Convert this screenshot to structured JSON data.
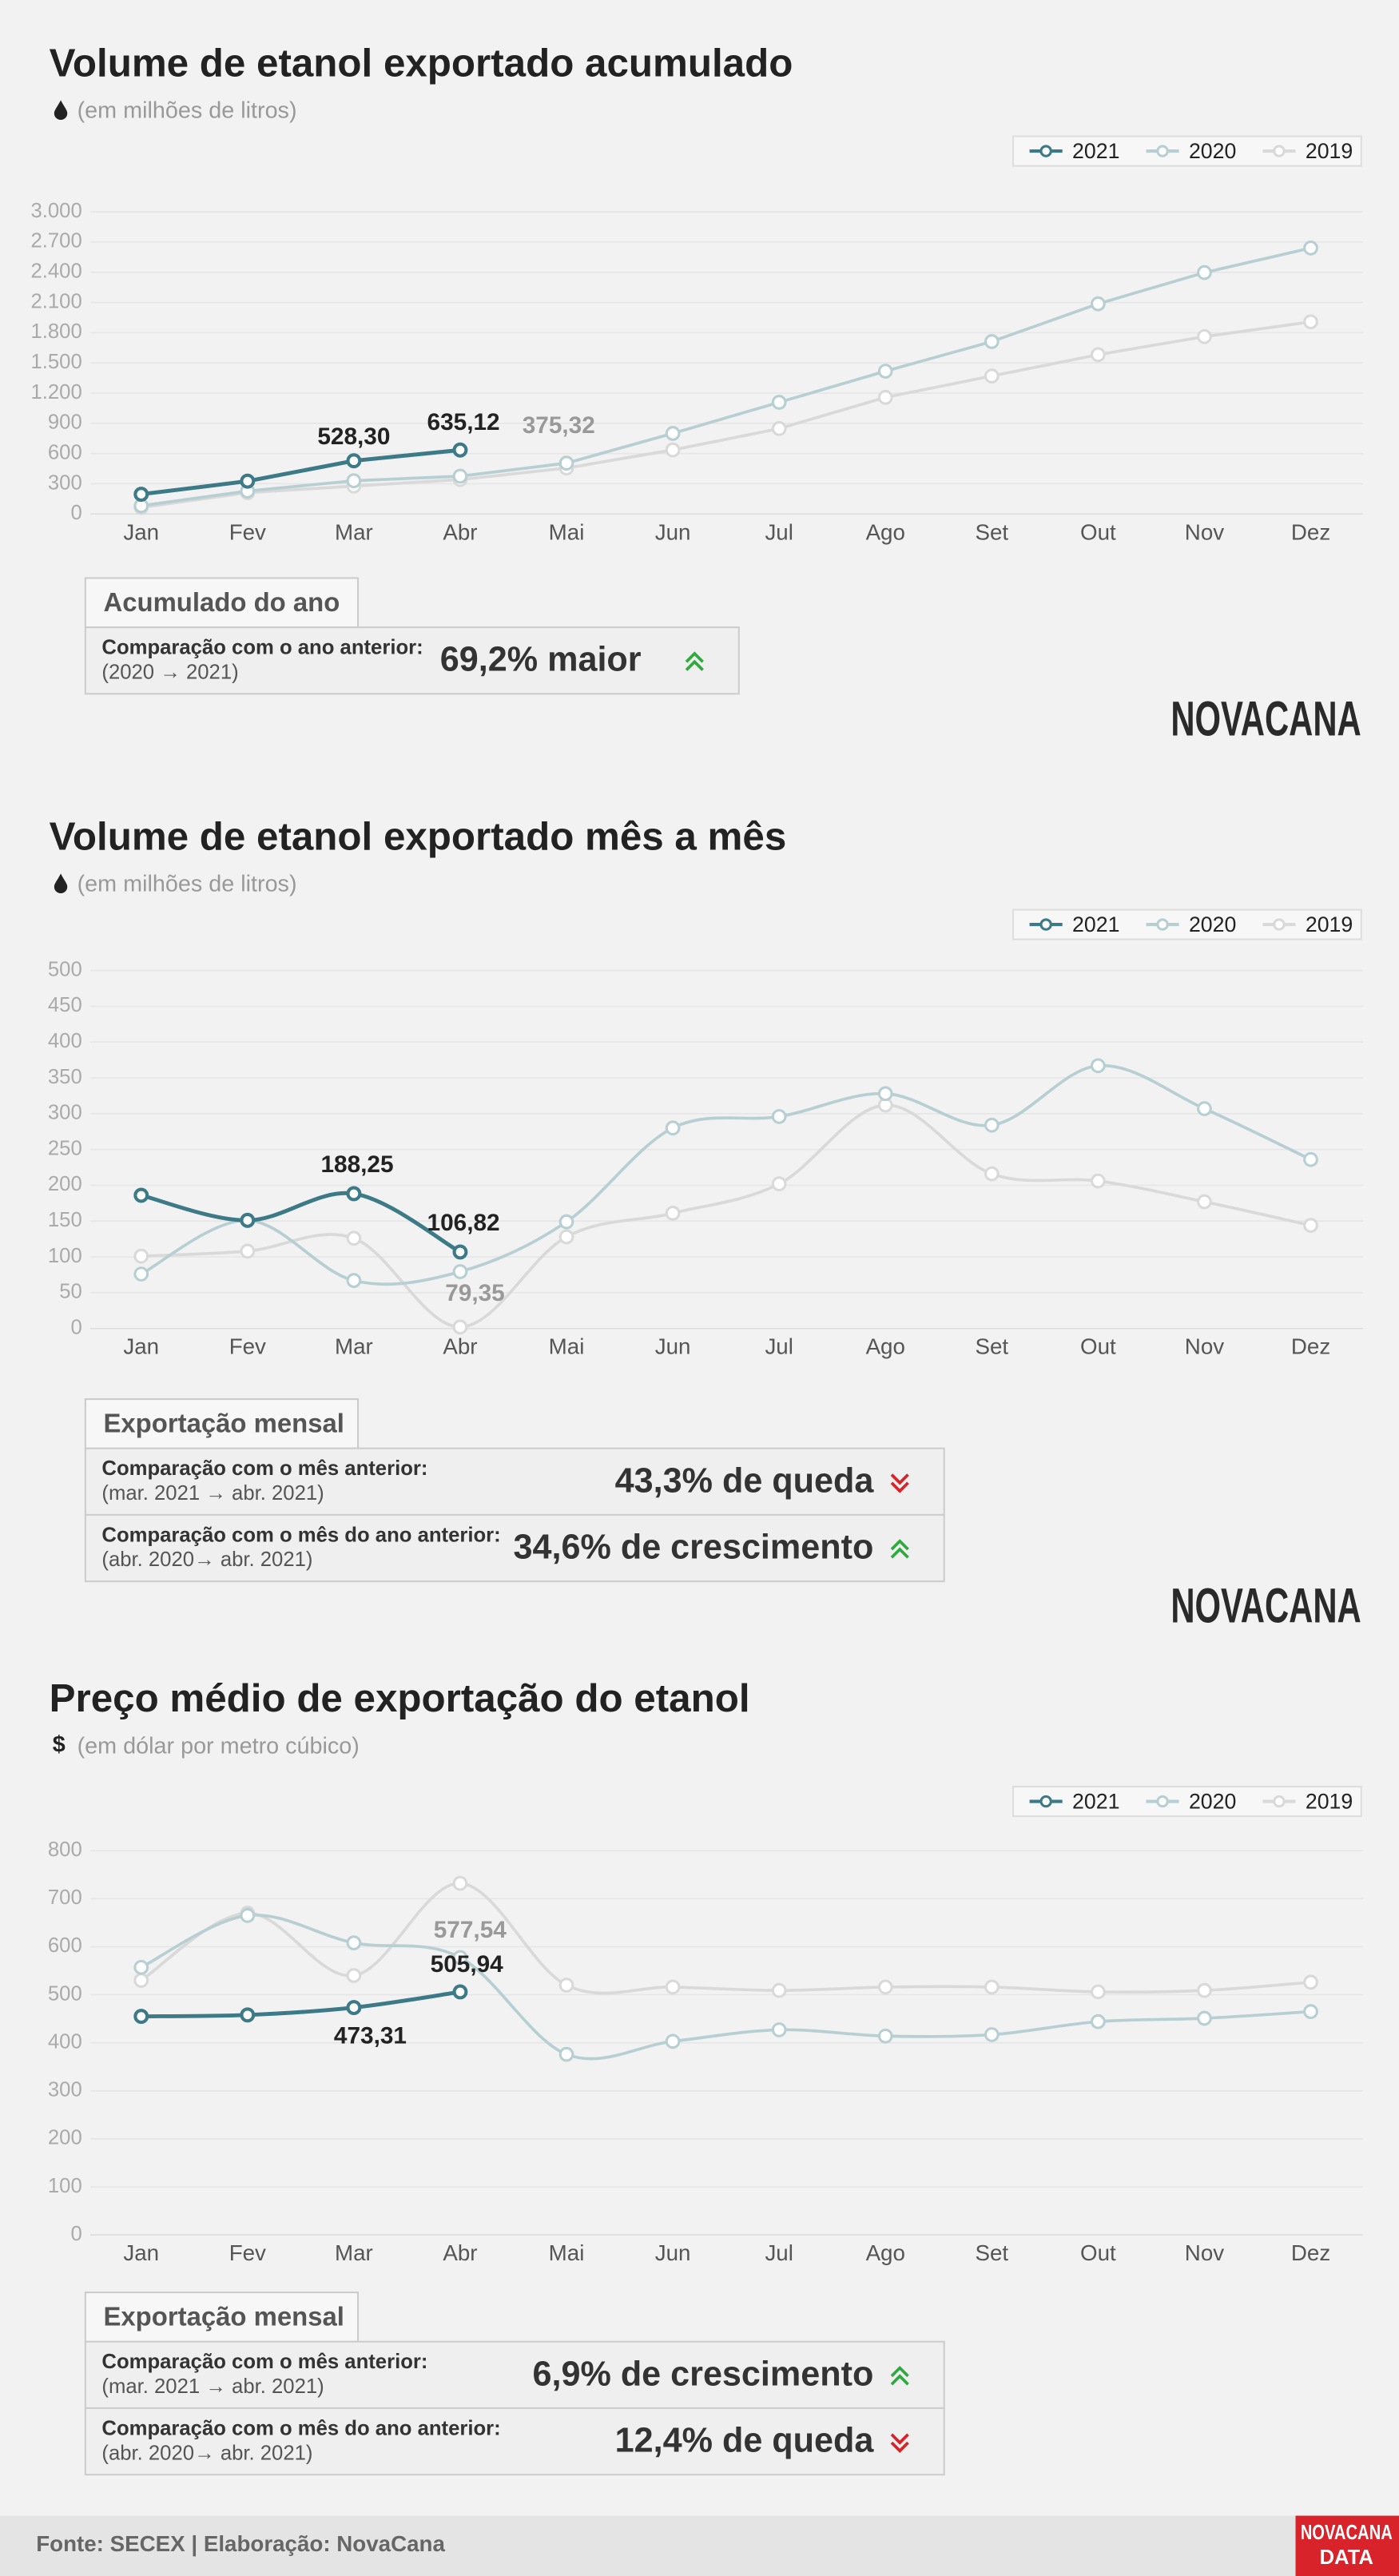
{
  "brand": "NOVACANA",
  "footer": {
    "source": "Fonte: SECEX | Elaboração: NovaCana",
    "logo_sub": "DATA"
  },
  "chart_data": [
    {
      "type": "line",
      "smooth": false,
      "grid": true,
      "title": "Volume de etanol exportado acumulado",
      "subtitle": "(em milhões de litros)",
      "categories": [
        "Jan",
        "Fev",
        "Mar",
        "Abr",
        "Mai",
        "Jun",
        "Jul",
        "Ago",
        "Set",
        "Out",
        "Nov",
        "Dez"
      ],
      "ylim": [
        0,
        3000
      ],
      "yticks": [
        0,
        300,
        600,
        900,
        {
          "value": 1200,
          "label": "1.200"
        },
        {
          "value": 1500,
          "label": "1.500"
        },
        {
          "value": 1800,
          "label": "1.800"
        },
        {
          "value": 2100,
          "label": "2.100"
        },
        {
          "value": 2400,
          "label": "2.400"
        },
        {
          "value": 2700,
          "label": "2.700"
        },
        {
          "value": 3000,
          "label": "3.000"
        }
      ],
      "series": [
        {
          "name": "2021",
          "color": "#3d7a87",
          "values": [
            196,
            326,
            528.3,
            635.12,
            null,
            null,
            null,
            null,
            null,
            null,
            null,
            null
          ],
          "value_labels": [
            null,
            null,
            "528,30",
            "635,12",
            null,
            null,
            null,
            null,
            null,
            null,
            null,
            null
          ]
        },
        {
          "name": "2020",
          "color": "#b7cfd3",
          "values": [
            82,
            228,
            330,
            375.32,
            505,
            800,
            1109,
            1418,
            1712,
            2087,
            2397,
            2641
          ],
          "value_labels": [
            null,
            null,
            null,
            "375,32",
            null,
            null,
            null,
            null,
            null,
            null,
            null,
            null
          ]
        },
        {
          "name": "2019",
          "color": "#d9d9d9",
          "values": [
            65,
            212,
            277,
            342,
            456,
            636,
            848,
            1158,
            1370,
            1582,
            1761,
            1908
          ]
        }
      ],
      "summary": {
        "heading": "Acumulado do ano",
        "rows": [
          {
            "label": "Comparação com o ano anterior:",
            "period": "(2020 → 2021)",
            "value": "69,2% maior",
            "trend": "up"
          }
        ]
      }
    },
    {
      "type": "line",
      "smooth": true,
      "grid": true,
      "title": "Volume de etanol exportado mês a mês",
      "subtitle": "(em milhões de litros)",
      "categories": [
        "Jan",
        "Fev",
        "Mar",
        "Abr",
        "Mai",
        "Jun",
        "Jul",
        "Ago",
        "Set",
        "Out",
        "Nov",
        "Dez"
      ],
      "ylim": [
        0,
        500
      ],
      "yticks": [
        0,
        50,
        100,
        150,
        200,
        250,
        300,
        350,
        400,
        450,
        500
      ],
      "series": [
        {
          "name": "2021",
          "color": "#3d7a87",
          "values": [
            186,
            151,
            188.25,
            106.82,
            null,
            null,
            null,
            null,
            null,
            null,
            null,
            null
          ],
          "value_labels": [
            null,
            null,
            "188,25",
            "106,82",
            null,
            null,
            null,
            null,
            null,
            null,
            null,
            null
          ]
        },
        {
          "name": "2020",
          "color": "#b7cfd3",
          "values": [
            76,
            151,
            67,
            79.35,
            149,
            280,
            296,
            328,
            284,
            367,
            307,
            236
          ],
          "value_labels": [
            null,
            null,
            null,
            "79,35",
            null,
            null,
            null,
            null,
            null,
            null,
            null,
            null
          ]
        },
        {
          "name": "2019",
          "color": "#d9d9d9",
          "values": [
            101,
            108,
            126,
            2,
            128,
            161,
            202,
            312,
            216,
            206,
            177,
            144
          ]
        }
      ],
      "summary": {
        "heading": "Exportação mensal",
        "rows": [
          {
            "label": "Comparação com o mês anterior:",
            "period": "(mar. 2021 → abr. 2021)",
            "value": "43,3% de queda",
            "trend": "down"
          },
          {
            "label": "Comparação com o mês do ano anterior:",
            "period": "(abr. 2020→ abr. 2021)",
            "value": "34,6% de crescimento",
            "trend": "up"
          }
        ]
      }
    },
    {
      "type": "line",
      "smooth": true,
      "grid": true,
      "title": "Preço médio de exportação do etanol",
      "subtitle": "(em dólar por metro cúbico)",
      "icon": "$",
      "categories": [
        "Jan",
        "Fev",
        "Mar",
        "Abr",
        "Mai",
        "Jun",
        "Jul",
        "Ago",
        "Set",
        "Out",
        "Nov",
        "Dez"
      ],
      "ylim": [
        0,
        800
      ],
      "yticks": [
        0,
        100,
        200,
        300,
        400,
        500,
        600,
        700,
        800
      ],
      "series": [
        {
          "name": "2021",
          "color": "#3d7a87",
          "values": [
            455,
            458,
            473.31,
            505.94,
            null,
            null,
            null,
            null,
            null,
            null,
            null,
            null
          ],
          "value_labels": [
            null,
            null,
            "473,31",
            "505,94",
            null,
            null,
            null,
            null,
            null,
            null,
            null,
            null
          ]
        },
        {
          "name": "2020",
          "color": "#b7cfd3",
          "values": [
            557,
            665,
            608,
            577.54,
            376,
            403,
            427,
            414,
            417,
            444,
            451,
            465
          ],
          "value_labels": [
            null,
            null,
            null,
            "577,54",
            null,
            null,
            null,
            null,
            null,
            null,
            null,
            null
          ]
        },
        {
          "name": "2019",
          "color": "#d9d9d9",
          "values": [
            530,
            670,
            540,
            732,
            520,
            516,
            509,
            516,
            516,
            506,
            509,
            526
          ]
        }
      ],
      "summary": {
        "heading": "Exportação mensal",
        "rows": [
          {
            "label": "Comparação com o mês anterior:",
            "period": "(mar. 2021 → abr. 2021)",
            "value": "6,9% de crescimento",
            "trend": "up"
          },
          {
            "label": "Comparação com o mês do ano anterior:",
            "period": "(abr. 2020→ abr. 2021)",
            "value": "12,4% de queda",
            "trend": "down"
          }
        ]
      }
    }
  ]
}
